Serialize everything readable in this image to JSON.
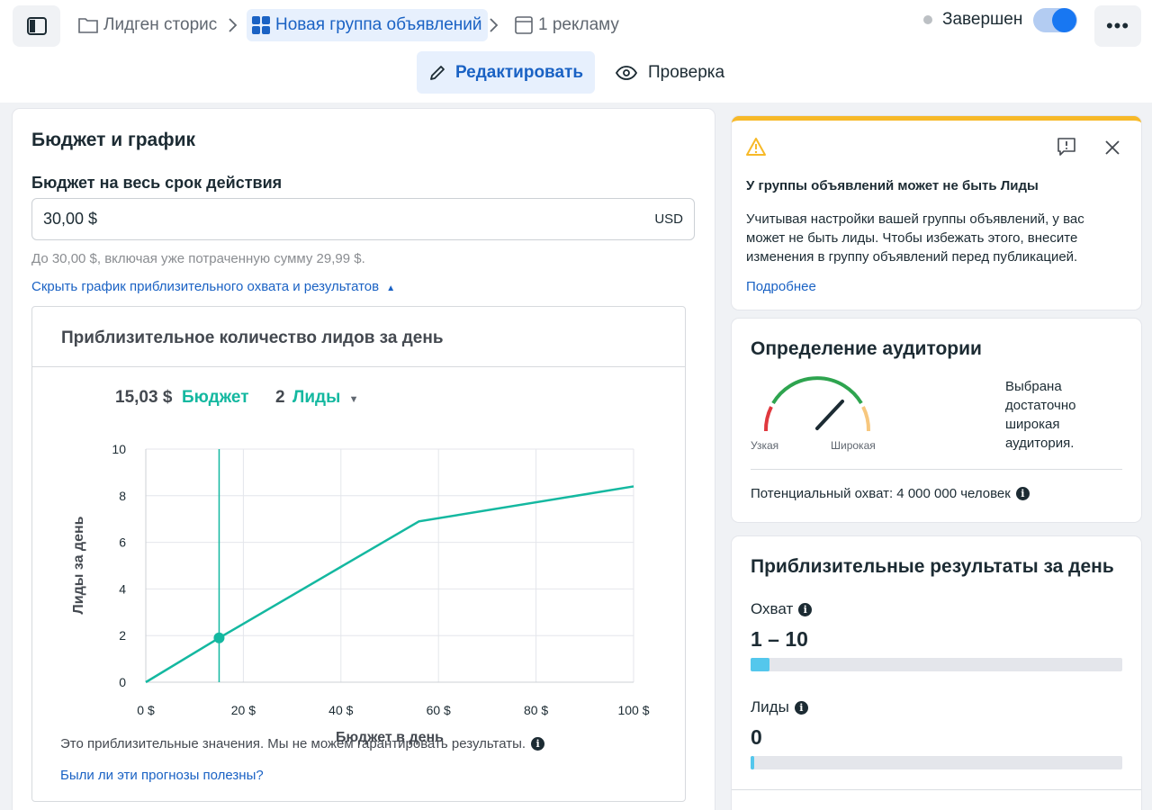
{
  "breadcrumb": {
    "campaign": "Лидген сторис",
    "ad_set": "Новая группа объявлений",
    "ads": "1 рекламу"
  },
  "status": {
    "label": "Завершен",
    "enabled": true
  },
  "tabs": {
    "edit": "Редактировать",
    "review": "Проверка"
  },
  "budget": {
    "section_title": "Бюджет и график",
    "field_label": "Бюджет на весь срок действия",
    "value": "30,00 $",
    "currency": "USD",
    "hint": "До 30,00 $, включая уже потраченную сумму 29,99 $.",
    "toggle_link": "Скрыть график приблизительного охвата и результатов"
  },
  "estimate": {
    "title": "Приблизительное количество лидов за день",
    "budget_value": "15,03 $",
    "budget_label": "Бюджет",
    "results_value": "2",
    "results_label": "Лиды",
    "disclaimer": "Это приблизительные значения. Мы не можем гарантировать результаты.",
    "feedback_link": "Были ли эти прогнозы полезны?"
  },
  "chart_data": {
    "type": "line",
    "xlabel": "Бюджет в день",
    "ylabel": "Лиды за день",
    "xlim": [
      0,
      100
    ],
    "ylim": [
      0,
      10
    ],
    "x_ticks": [
      "0 $",
      "20 $",
      "40 $",
      "60 $",
      "80 $",
      "100 $"
    ],
    "y_ticks": [
      "0",
      "2",
      "4",
      "6",
      "8",
      "10"
    ],
    "grid": true,
    "series": [
      {
        "x": [
          0,
          15.03,
          56,
          100
        ],
        "y": [
          0,
          1.9,
          6.9,
          8.4
        ]
      }
    ],
    "marker": {
      "x": 15.03,
      "y": 1.9
    },
    "color": "#14b8a0"
  },
  "warning": {
    "title": "У группы объявлений может не быть Лиды",
    "body": "Учитывая настройки вашей группы объявлений, у вас может не быть лиды. Чтобы избежать этого, внесите изменения в группу объявлений перед публикацией.",
    "link": "Подробнее"
  },
  "audience": {
    "title": "Определение аудитории",
    "narrow": "Узкая",
    "broad": "Широкая",
    "verdict": "Выбрана достаточно широкая аудитория.",
    "reach": "Потенциальный охват: 4 000 000 человек"
  },
  "results": {
    "title": "Приблизительные результаты за день",
    "reach_label": "Охват",
    "reach_value": "1 – 10",
    "reach_fill": 0.05,
    "leads_label": "Лиды",
    "leads_value": "0",
    "leads_fill": 0.01
  },
  "colors": {
    "accent": "#1877f2",
    "link": "#1a62c4",
    "teal": "#14b8a0",
    "warning": "#f7b928",
    "bar": "#54c7ec"
  }
}
